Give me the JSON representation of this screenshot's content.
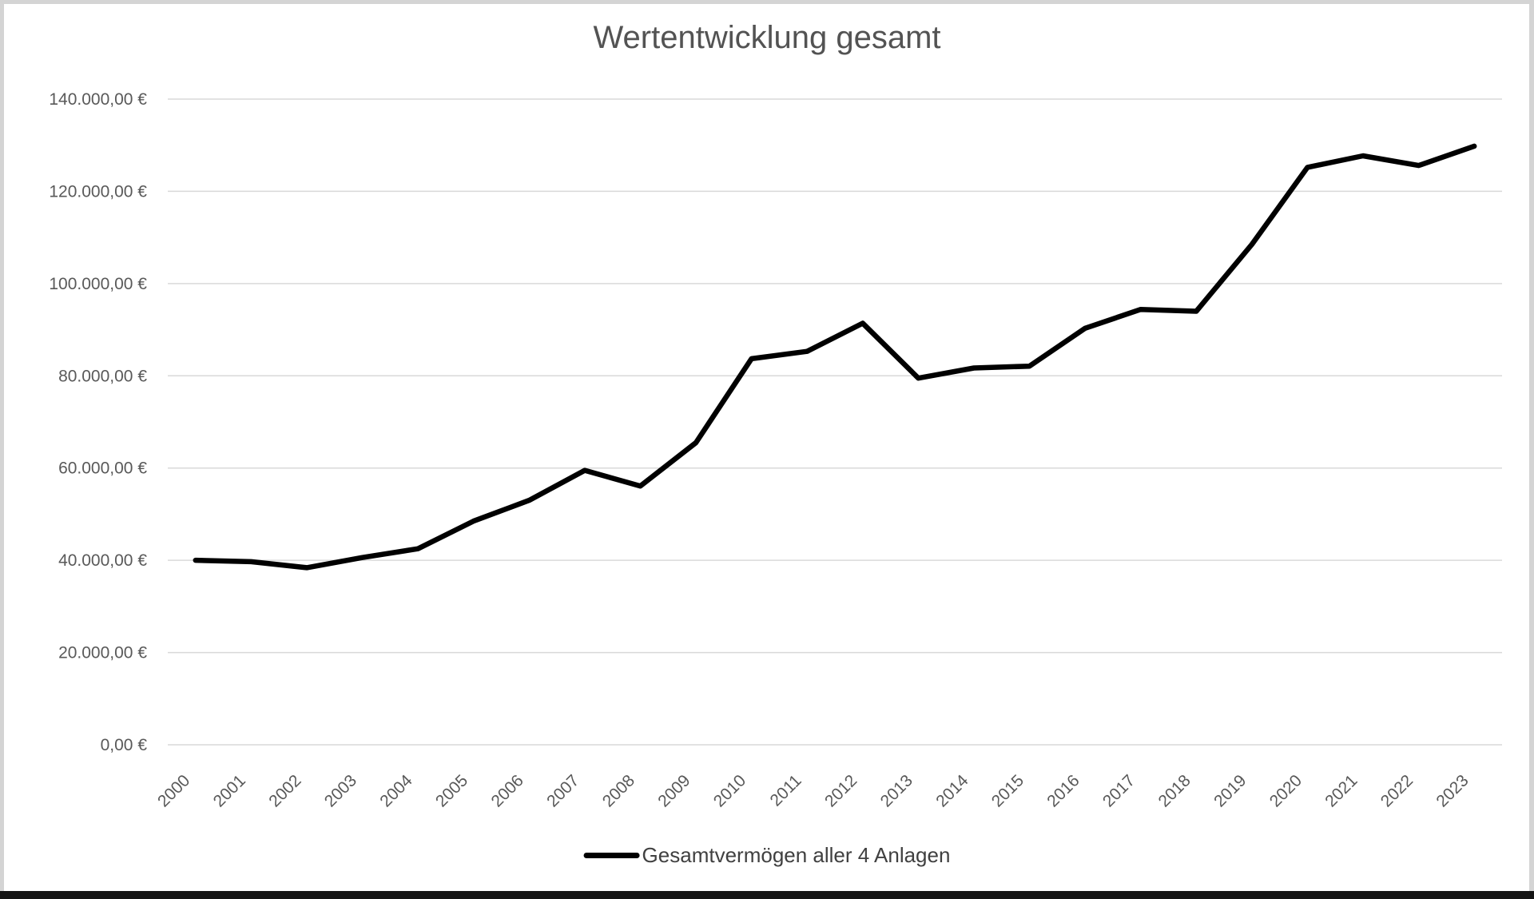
{
  "colors": {
    "series_line": "#000000",
    "gridline": "#d9d9d9",
    "axis_text": "#595959",
    "title_text": "#535353",
    "legend_text": "#404040",
    "frame_gray": "#d4d4d4",
    "frame_bottom": "#141414"
  },
  "chart_data": {
    "type": "line",
    "title": "Wertentwicklung gesamt",
    "xlabel": "",
    "ylabel": "",
    "grid": true,
    "legend_position": "bottom",
    "x_tick_rotation_deg": -45,
    "categories": [
      "2000",
      "2001",
      "2002",
      "2003",
      "2004",
      "2005",
      "2006",
      "2007",
      "2008",
      "2009",
      "2010",
      "2011",
      "2012",
      "2013",
      "2014",
      "2015",
      "2016",
      "2017",
      "2018",
      "2019",
      "2020",
      "2021",
      "2022",
      "2023"
    ],
    "series": [
      {
        "name": "Gesamtvermögen aller 4 Anlagen",
        "color": "#000000",
        "values": [
          40000,
          39700,
          38400,
          40600,
          42500,
          48500,
          53000,
          59500,
          56100,
          65500,
          83700,
          85300,
          91400,
          79500,
          81700,
          82100,
          90300,
          94400,
          94000,
          108500,
          125200,
          127700,
          125600,
          129800
        ]
      }
    ],
    "y_axis": {
      "min": 0,
      "max": 140000,
      "step": 20000,
      "tick_labels_top_to_bottom": [
        "140.000,00 €",
        "120.000,00 €",
        "100.000,00 €",
        "80.000,00 €",
        "60.000,00 €",
        "40.000,00 €",
        "20.000,00 €",
        "0,00 €"
      ]
    }
  }
}
